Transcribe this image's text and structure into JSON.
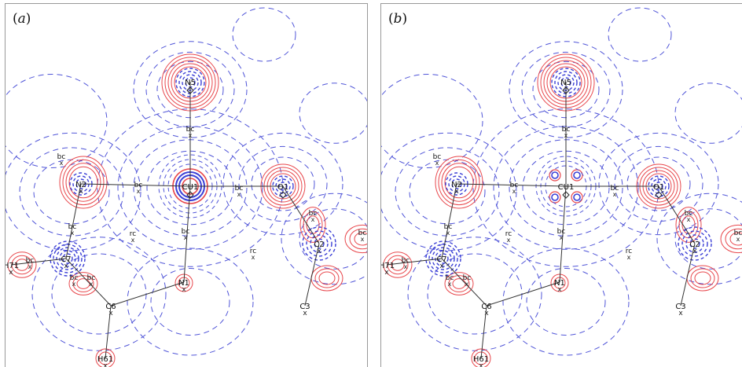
{
  "colors": {
    "positive_contour": "#e8474c",
    "negative_contour": "#3b3fd6",
    "zero_contour": "#5055d8",
    "bond": "#333333",
    "marker": "#222222",
    "frame": "#999999"
  },
  "panels": [
    {
      "id": "a",
      "label_open": "(",
      "label_letter": "a",
      "label_close": ")",
      "atoms": [
        "N5",
        "N2",
        "CU1",
        "O1",
        "C7",
        "C2",
        "N1",
        "C6",
        "C3",
        "H71",
        "H61"
      ],
      "critical_points": [
        "bc",
        "bc",
        "bc",
        "bc",
        "bc",
        "bc",
        "bc",
        "bc",
        "bc",
        "bc",
        "bc",
        "rc",
        "rc"
      ]
    },
    {
      "id": "b",
      "label_open": "(",
      "label_letter": "b",
      "label_close": ")",
      "atoms": [
        "N5",
        "N2",
        "CU1",
        "O1",
        "C7",
        "C2",
        "N1",
        "C6",
        "C3",
        "H71",
        "H61"
      ],
      "critical_points": [
        "bc",
        "bc",
        "bc",
        "bc",
        "bc",
        "bc",
        "bc",
        "bc",
        "bc",
        "bc",
        "bc",
        "rc",
        "rc"
      ]
    }
  ]
}
